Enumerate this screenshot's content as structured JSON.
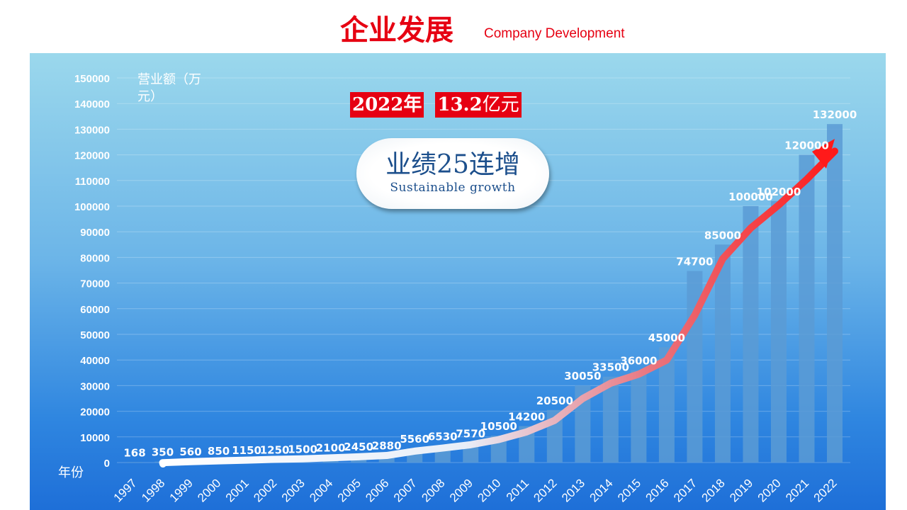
{
  "header": {
    "title": "企业发展",
    "subtitle": "Company Development"
  },
  "highlight": {
    "year": "2022年",
    "amount_num": "13.2",
    "amount_unit": "亿元"
  },
  "badge": {
    "main": "业绩25连增",
    "sub": "Sustainable growth"
  },
  "chart_data": {
    "type": "bar",
    "title": "",
    "ylabel": "营业额（万元）",
    "xlabel": "年份",
    "ylim": [
      0,
      150000
    ],
    "yticks": [
      0,
      10000,
      20000,
      30000,
      40000,
      50000,
      60000,
      70000,
      80000,
      90000,
      100000,
      110000,
      120000,
      130000,
      140000,
      150000
    ],
    "grid": true,
    "categories": [
      "1997",
      "1998",
      "1999",
      "2000",
      "2001",
      "2002",
      "2003",
      "2004",
      "2005",
      "2006",
      "2007",
      "2008",
      "2009",
      "2010",
      "2011",
      "2012",
      "2013",
      "2014",
      "2015",
      "2016",
      "2017",
      "2018",
      "2019",
      "2020",
      "2021",
      "2022"
    ],
    "values": [
      168,
      350,
      560,
      850,
      1150,
      1250,
      1500,
      2100,
      2450,
      2880,
      5560,
      6530,
      7570,
      10500,
      14200,
      20500,
      30050,
      33500,
      36000,
      45000,
      74700,
      85000,
      100000,
      102000,
      120000,
      132000
    ],
    "annotations": [
      "growth trend arrow"
    ],
    "colors": {
      "bar": "#5b9bd5",
      "arrow_start": "#ffffff",
      "arrow_end": "#ff1a1a"
    }
  }
}
